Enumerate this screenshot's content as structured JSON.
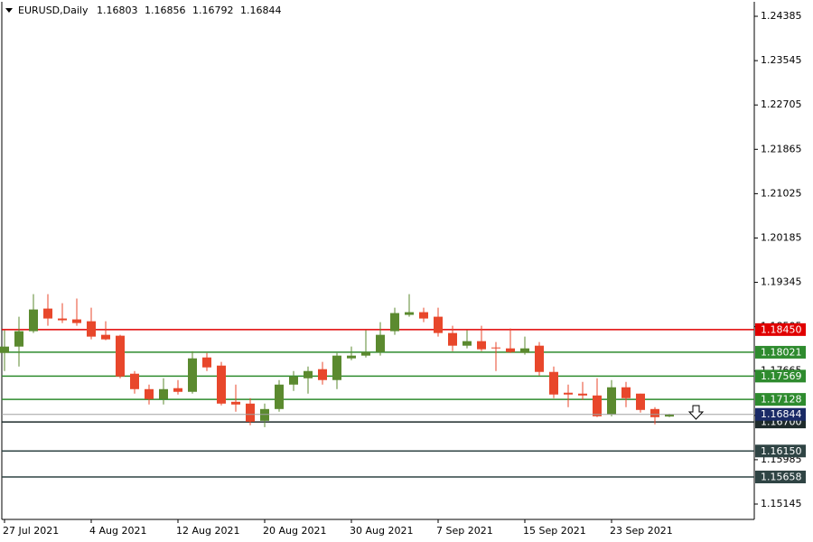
{
  "chart_data": {
    "type": "candlestick",
    "title": "EURUSD,Daily",
    "categories": [
      "27 Jul 2021",
      null,
      null,
      null,
      null,
      null,
      "4 Aug 2021",
      null,
      null,
      null,
      null,
      null,
      "12 Aug 2021",
      null,
      null,
      null,
      null,
      null,
      "20 Aug 2021",
      null,
      null,
      null,
      null,
      null,
      "30 Aug 2021",
      null,
      null,
      null,
      null,
      null,
      "7 Sep 2021",
      null,
      null,
      null,
      null,
      null,
      "15 Sep 2021",
      null,
      null,
      null,
      null,
      null,
      "23 Sep 2021",
      null,
      null,
      null,
      null
    ],
    "open": [
      1.18008,
      1.18128,
      1.1842,
      1.18848,
      1.1866,
      1.18643,
      1.18608,
      1.18351,
      1.18334,
      1.17614,
      1.17322,
      1.17134,
      1.1734,
      1.17271,
      1.17922,
      1.17768,
      1.17082,
      1.17048,
      1.16722,
      1.16945,
      1.17408,
      1.17528,
      1.177,
      1.17494,
      1.17905,
      1.17957,
      1.18025,
      1.1842,
      1.18729,
      1.1878,
      1.18694,
      1.18385,
      1.18145,
      1.18231,
      1.18111,
      1.18094,
      1.18008,
      1.18145,
      1.17648,
      1.17254,
      1.17237,
      1.17202,
      1.16842,
      1.17357,
      1.17237,
      1.16945,
      1.16803
    ],
    "high": [
      1.18437,
      1.18694,
      1.19122,
      1.19122,
      1.18951,
      1.19037,
      1.18865,
      1.18608,
      1.18351,
      1.17665,
      1.17408,
      1.17528,
      1.17494,
      1.18042,
      1.18008,
      1.17837,
      1.17408,
      1.17151,
      1.17048,
      1.17494,
      1.17665,
      1.17751,
      1.17837,
      1.18008,
      1.18128,
      1.18437,
      1.18591,
      1.18865,
      1.19122,
      1.18865,
      1.18865,
      1.18522,
      1.18437,
      1.18522,
      1.18214,
      1.18471,
      1.18317,
      1.18214,
      1.17751,
      1.17408,
      1.1746,
      1.17528,
      1.17494,
      1.1746,
      1.17237,
      1.1698,
      1.16856
    ],
    "low": [
      1.17665,
      1.17751,
      1.18385,
      1.18522,
      1.18574,
      1.18522,
      1.18265,
      1.18248,
      1.17528,
      1.17237,
      1.17031,
      1.17031,
      1.1722,
      1.17237,
      1.17665,
      1.17014,
      1.16894,
      1.16637,
      1.16602,
      1.16894,
      1.17288,
      1.17237,
      1.17408,
      1.17322,
      1.17871,
      1.17922,
      1.17957,
      1.18351,
      1.18694,
      1.18591,
      1.18317,
      1.18042,
      1.18094,
      1.18042,
      1.17665,
      1.18008,
      1.17974,
      1.1758,
      1.17151,
      1.1698,
      1.17117,
      1.16791,
      1.16808,
      1.1698,
      1.16877,
      1.16654,
      1.16792
    ],
    "close": [
      1.18128,
      1.1842,
      1.18831,
      1.1866,
      1.18626,
      1.18574,
      1.18317,
      1.18265,
      1.17562,
      1.17322,
      1.17134,
      1.17322,
      1.17271,
      1.17905,
      1.17734,
      1.17048,
      1.17031,
      1.16705,
      1.16945,
      1.17408,
      1.17562,
      1.17665,
      1.17494,
      1.17957,
      1.17957,
      1.18025,
      1.18351,
      1.18763,
      1.1878,
      1.1866,
      1.18385,
      1.18145,
      1.18231,
      1.18077,
      1.18094,
      1.18025,
      1.18094,
      1.17648,
      1.1722,
      1.1722,
      1.17202,
      1.16808,
      1.17357,
      1.17151,
      1.16928,
      1.16791,
      1.16844
    ],
    "up_color": "#5b8a2f",
    "down_color": "#e8472b",
    "ylim": [
      1.14854,
      1.24608
    ],
    "yticks": [
      1.24385,
      1.23545,
      1.22705,
      1.21865,
      1.21025,
      1.20185,
      1.19345,
      1.18505,
      1.17665,
      1.16825,
      1.15985,
      1.15145
    ],
    "levels": [
      {
        "value": 1.1845,
        "label": "1.18450",
        "color": "#e00000"
      },
      {
        "value": 1.18021,
        "label": "1.18021",
        "color": "#2e8b2e"
      },
      {
        "value": 1.17569,
        "label": "1.17569",
        "color": "#2e8b2e"
      },
      {
        "value": 1.17128,
        "label": "1.17128",
        "color": "#2e8b2e"
      },
      {
        "value": 1.167,
        "label": "1.16700",
        "color": "#1e2b2b"
      },
      {
        "value": 1.1615,
        "label": "1.16150",
        "color": "#2f4444"
      },
      {
        "value": 1.15658,
        "label": "1.15658",
        "color": "#2f4444"
      }
    ],
    "price_color": "#1a2a66",
    "grid": false
  }
}
